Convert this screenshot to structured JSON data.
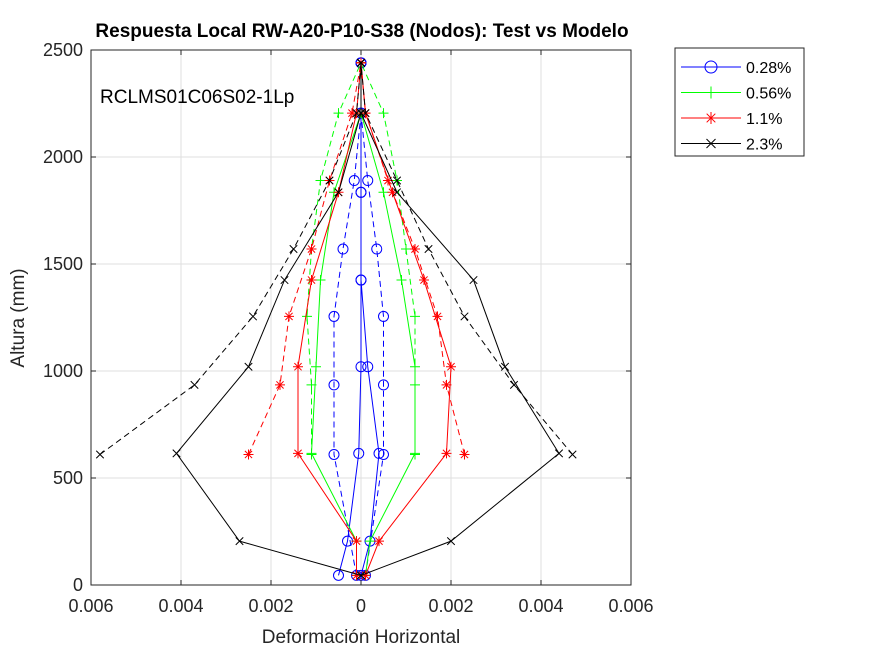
{
  "chart_data": {
    "type": "line",
    "title": "Respuesta Local RW-A20-P10-S38 (Nodos): Test vs Modelo",
    "xlabel": "Deformación Horizontal",
    "ylabel": "Altura (mm)",
    "annotation": "RCLMS01C06S02-1Lp",
    "xlim": [
      -0.006,
      0.006
    ],
    "ylim": [
      0,
      2500
    ],
    "xticks": [
      -0.006,
      -0.004,
      -0.002,
      0,
      0.002,
      0.004,
      0.006
    ],
    "xtick_labels": [
      "0.006",
      "0.004",
      "0.002",
      "0",
      "0.002",
      "0.004",
      "0.006"
    ],
    "yticks": [
      0,
      500,
      1000,
      1500,
      2000,
      2500
    ],
    "ytick_labels": [
      "0",
      "500",
      "1000",
      "1500",
      "2000",
      "2500"
    ],
    "grid": true,
    "legend_position": "outside-top-right",
    "legend_labels": [
      "0.28%",
      "0.56%",
      "1.1%",
      "2.3%"
    ],
    "series": [
      {
        "name": "0.28%",
        "color": "#0000ff",
        "marker": "circle",
        "lines": [
          {
            "style": "solid",
            "x": [
              -0.0005,
              -0.0003,
              -5e-05,
              0.0,
              0.0,
              0.0,
              0.0
            ],
            "y": [
              45,
              205,
              615,
              1020,
              1425,
              1835,
              2440
            ]
          },
          {
            "style": "solid",
            "x": [
              0.0,
              0.0002,
              0.0004,
              0.00015,
              0.0,
              0.0,
              0.0
            ],
            "y": [
              45,
              205,
              615,
              1020,
              1425,
              1835,
              2440
            ]
          },
          {
            "style": "dashed",
            "x": [
              -0.0001,
              -0.0006,
              -0.0006,
              -0.0006,
              -0.0004,
              -0.00015,
              0.0,
              0.0
            ],
            "y": [
              45,
              610,
              935,
              1255,
              1570,
              1890,
              2205,
              2440
            ]
          },
          {
            "style": "dashed",
            "x": [
              0.0001,
              0.0005,
              0.0005,
              0.0005,
              0.00035,
              0.00015,
              0.0,
              0.0
            ],
            "y": [
              45,
              610,
              935,
              1255,
              1570,
              1890,
              2205,
              2440
            ]
          }
        ]
      },
      {
        "name": "0.56%",
        "color": "#00ff00",
        "marker": "plus",
        "lines": [
          {
            "style": "solid",
            "x": [
              -0.0001,
              -0.0001,
              -0.0011,
              -0.001,
              -0.0009,
              -0.0006,
              0.0,
              0.0
            ],
            "y": [
              45,
              205,
              615,
              1020,
              1425,
              1835,
              2205,
              2440
            ]
          },
          {
            "style": "solid",
            "x": [
              0.0001,
              0.0002,
              0.0012,
              0.0012,
              0.0009,
              0.0005,
              0.0,
              0.0
            ],
            "y": [
              45,
              205,
              615,
              1020,
              1425,
              1835,
              2205,
              2440
            ]
          },
          {
            "style": "dashed",
            "x": [
              -0.0011,
              -0.0011,
              -0.0012,
              -0.0011,
              -0.0009,
              -0.0005,
              0.0,
              0.0
            ],
            "y": [
              610,
              935,
              1255,
              1570,
              1890,
              2205,
              2440,
              2440
            ]
          },
          {
            "style": "dashed",
            "x": [
              0.0012,
              0.0012,
              0.0012,
              0.001,
              0.0008,
              0.0005,
              0.0,
              0.0
            ],
            "y": [
              610,
              935,
              1255,
              1570,
              1890,
              2205,
              2440,
              2440
            ]
          }
        ]
      },
      {
        "name": "1.1%",
        "color": "#ff0000",
        "marker": "asterisk",
        "lines": [
          {
            "style": "solid",
            "x": [
              -0.0001,
              -0.0001,
              -0.0014,
              -0.0014,
              -0.0011,
              -0.0005,
              -0.0001,
              0.0
            ],
            "y": [
              45,
              205,
              615,
              1020,
              1425,
              1835,
              2205,
              2440
            ]
          },
          {
            "style": "solid",
            "x": [
              0.0001,
              0.0004,
              0.0019,
              0.002,
              0.0014,
              0.0007,
              0.0001,
              0.0
            ],
            "y": [
              45,
              205,
              615,
              1020,
              1425,
              1835,
              2205,
              2440
            ]
          },
          {
            "style": "dashed",
            "x": [
              -0.0025,
              -0.0018,
              -0.0016,
              -0.0011,
              -0.0007,
              -0.0002,
              0.0
            ],
            "y": [
              610,
              935,
              1255,
              1570,
              1890,
              2205,
              2440
            ]
          },
          {
            "style": "dashed",
            "x": [
              0.0023,
              0.0019,
              0.0017,
              0.0012,
              0.0006,
              0.0001,
              0.0
            ],
            "y": [
              610,
              935,
              1255,
              1570,
              1890,
              2205,
              2440
            ]
          }
        ]
      },
      {
        "name": "2.3%",
        "color": "#000000",
        "marker": "x",
        "lines": [
          {
            "style": "solid",
            "x": [
              0.0,
              -0.0027,
              -0.0041,
              -0.0025,
              -0.0017,
              -0.0005,
              0.0,
              0.0
            ],
            "y": [
              45,
              205,
              615,
              1020,
              1425,
              1835,
              2205,
              2440
            ]
          },
          {
            "style": "solid",
            "x": [
              0.0,
              0.002,
              0.0044,
              0.0032,
              0.0025,
              0.0008,
              0.0,
              0.0
            ],
            "y": [
              45,
              205,
              615,
              1020,
              1425,
              1835,
              2205,
              2440
            ]
          },
          {
            "style": "dashed",
            "x": [
              -0.0058,
              -0.0037,
              -0.0024,
              -0.0015,
              -0.0007,
              -0.0001,
              0.0
            ],
            "y": [
              610,
              935,
              1255,
              1570,
              1890,
              2205,
              2440
            ]
          },
          {
            "style": "dashed",
            "x": [
              0.0047,
              0.0034,
              0.0023,
              0.0015,
              0.0008,
              0.0001,
              0.0
            ],
            "y": [
              610,
              935,
              1255,
              1570,
              1890,
              2205,
              2440
            ]
          }
        ]
      }
    ]
  }
}
